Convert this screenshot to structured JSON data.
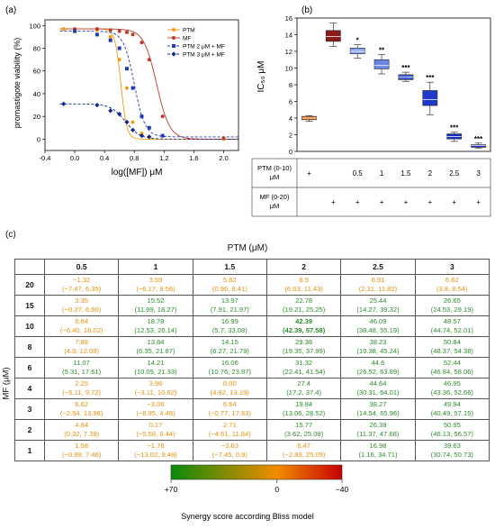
{
  "panel_a": {
    "label": "(a)",
    "chart_data": {
      "type": "scatter",
      "xlabel": "log([MF]) μM",
      "ylabel": "promastigote viability (%)",
      "xlim": [
        -0.4,
        2.2
      ],
      "ylim": [
        -10,
        105
      ],
      "xticks": [
        "-0.4",
        "0.0",
        "0.4",
        "0.8",
        "1.2",
        "1.6",
        "2.0"
      ],
      "yticks": [
        "0",
        "20",
        "40",
        "60",
        "80",
        "100"
      ],
      "legend_position": "top-right",
      "series": [
        {
          "name": "PTM",
          "color": "#f39c12",
          "marker": "circle",
          "line": "solid",
          "x": [
            -0.15,
            0.3,
            0.48,
            0.6,
            0.7,
            0.78,
            0.9,
            1.0,
            2.0
          ],
          "y": [
            97,
            96,
            90,
            70,
            45,
            15,
            5,
            2,
            0
          ],
          "curve": {
            "top": 97,
            "bottom": 0,
            "logec50": 0.62,
            "hill": 11
          }
        },
        {
          "name": "MF",
          "color": "#c0392b",
          "marker": "circle",
          "line": "solid",
          "x": [
            0.0,
            0.3,
            0.48,
            0.6,
            0.7,
            0.78,
            0.9,
            1.0,
            1.18,
            2.0
          ],
          "y": [
            97,
            97,
            96,
            95,
            94,
            92,
            85,
            70,
            20,
            1
          ],
          "curve": {
            "top": 97,
            "bottom": 0,
            "logec50": 1.1,
            "hill": 5
          }
        },
        {
          "name": "PTM 2 μM + MF",
          "color": "#1f3bb3",
          "marker": "square",
          "line": "dashed",
          "x": [
            0.0,
            0.3,
            0.48,
            0.6,
            0.7,
            0.78,
            0.9,
            1.0,
            1.18
          ],
          "y": [
            95,
            92,
            87,
            80,
            62,
            45,
            20,
            10,
            3
          ],
          "curve": {
            "top": 95,
            "bottom": 2,
            "logec50": 0.8,
            "hill": 6
          }
        },
        {
          "name": "PTM 3 μM + MF",
          "color": "#0b2a8f",
          "marker": "diamond",
          "line": "dashed",
          "x": [
            -0.15,
            0.3,
            0.48,
            0.6,
            0.7,
            0.78,
            0.9,
            1.0
          ],
          "y": [
            31,
            30,
            25,
            22,
            15,
            8,
            3,
            2
          ],
          "curve": {
            "top": 31,
            "bottom": 0,
            "logec50": 0.68,
            "hill": 4.5
          }
        }
      ]
    }
  },
  "panel_b": {
    "label": "(b)",
    "chart_data": {
      "type": "box",
      "ylabel": "IC₅₀ μM",
      "ylim": [
        0,
        16
      ],
      "yticks": [
        "0",
        "2",
        "4",
        "6",
        "8",
        "10",
        "12",
        "14",
        "16"
      ],
      "boxes": [
        {
          "min": 3.6,
          "q1": 3.8,
          "median": 4.0,
          "q3": 4.2,
          "max": 4.3,
          "color": "#e07b1a",
          "sig": ""
        },
        {
          "min": 12.6,
          "q1": 13.2,
          "median": 13.8,
          "q3": 14.5,
          "max": 15.4,
          "color": "#8b1a1a",
          "sig": ""
        },
        {
          "min": 11.2,
          "q1": 11.7,
          "median": 12.0,
          "q3": 12.4,
          "max": 12.8,
          "color": "#8da5e8",
          "sig": "*"
        },
        {
          "min": 9.3,
          "q1": 9.9,
          "median": 10.3,
          "q3": 11.0,
          "max": 11.6,
          "color": "#6b86e0",
          "sig": "**"
        },
        {
          "min": 8.4,
          "q1": 8.6,
          "median": 8.9,
          "q3": 9.2,
          "max": 9.5,
          "color": "#3e5ed9",
          "sig": "***"
        },
        {
          "min": 4.4,
          "q1": 5.5,
          "median": 6.2,
          "q3": 7.3,
          "max": 8.3,
          "color": "#2038cc",
          "sig": "***"
        },
        {
          "min": 1.2,
          "q1": 1.5,
          "median": 1.8,
          "q3": 2.1,
          "max": 2.3,
          "color": "#1a2fc2",
          "sig": "***"
        },
        {
          "min": 0.4,
          "q1": 0.5,
          "median": 0.7,
          "q3": 0.8,
          "max": 1.0,
          "color": "#1428b8",
          "sig": "***"
        }
      ],
      "design_table": {
        "rows": [
          {
            "label": "PTM (0-10) μM",
            "cells": [
              "+",
              "",
              "0.5",
              "1",
              "1.5",
              "2",
              "2.5",
              "3"
            ]
          },
          {
            "label": "MF (0-20) μM",
            "cells": [
              "",
              "+",
              "+",
              "+",
              "+",
              "+",
              "+",
              "+"
            ]
          }
        ]
      }
    }
  },
  "panel_c": {
    "label": "(c)",
    "chart_data": {
      "type": "table",
      "title": "PTM (μM)",
      "row_axis_label": "MF (μM)",
      "columns": [
        "0.5",
        "1",
        "1.5",
        "2",
        "2.5",
        "3"
      ],
      "rows": [
        {
          "mf": "20",
          "cells": [
            {
              "v": "−1.32",
              "ci": "(−7.47, 6.35)",
              "s": "neg"
            },
            {
              "v": "3.59",
              "ci": "(−6.17, 9.56)",
              "s": "neg"
            },
            {
              "v": "5.82",
              "ci": "(0.96, 8.41)",
              "s": "neg"
            },
            {
              "v": "8.9",
              "ci": "(6.63, 11.43)",
              "s": "neg"
            },
            {
              "v": "6.91",
              "ci": "(2.31, 11.82)",
              "s": "neg"
            },
            {
              "v": "6.62",
              "ci": "(3.8, 8.54)",
              "s": "neg"
            }
          ]
        },
        {
          "mf": "15",
          "cells": [
            {
              "v": "3.35",
              "ci": "(−0.37, 6.60)",
              "s": "neg"
            },
            {
              "v": "15.52",
              "ci": "(11.99, 18.27)",
              "s": "pos"
            },
            {
              "v": "13.97",
              "ci": "(7.91, 21.97)",
              "s": "pos"
            },
            {
              "v": "22.78",
              "ci": "(19.21, 25.25)",
              "s": "pos"
            },
            {
              "v": "25.44",
              "ci": "(14.27, 39.32)",
              "s": "pos"
            },
            {
              "v": "26.65",
              "ci": "(24.53, 29.19)",
              "s": "pos"
            }
          ]
        },
        {
          "mf": "10",
          "cells": [
            {
              "v": "6.64",
              "ci": "(−6.40, 16.02)",
              "s": "neg"
            },
            {
              "v": "18.78",
              "ci": "(12.53, 26.14)",
              "s": "pos"
            },
            {
              "v": "16.99",
              "ci": "(5.7, 33.08)",
              "s": "pos"
            },
            {
              "v": "42.39",
              "ci": "(42.39, 57.58)",
              "s": "pos bold"
            },
            {
              "v": "46.09",
              "ci": "(38.48, 55.19)",
              "s": "pos"
            },
            {
              "v": "48.57",
              "ci": "(44.74, 52.01)",
              "s": "pos"
            }
          ]
        },
        {
          "mf": "8",
          "cells": [
            {
              "v": "7.88",
              "ci": "(4.9, 12.09)",
              "s": "neg"
            },
            {
              "v": "13.84",
              "ci": "(6.35, 21.87)",
              "s": "pos"
            },
            {
              "v": "14.15",
              "ci": "(6.27, 21.79)",
              "s": "pos"
            },
            {
              "v": "29.38",
              "ci": "(19.35, 37.99)",
              "s": "pos"
            },
            {
              "v": "38.23",
              "ci": "(19.38, 45.24)",
              "s": "pos"
            },
            {
              "v": "50.84",
              "ci": "(48.37, 54.38)",
              "s": "pos"
            }
          ]
        },
        {
          "mf": "6",
          "cells": [
            {
              "v": "11.07",
              "ci": "(5.31, 17.61)",
              "s": "pos"
            },
            {
              "v": "14.21",
              "ci": "(10.09, 21.33)",
              "s": "pos"
            },
            {
              "v": "16.06",
              "ci": "(10.76, 23.87)",
              "s": "pos"
            },
            {
              "v": "31.32",
              "ci": "(22.41, 41.54)",
              "s": "pos"
            },
            {
              "v": "44.6",
              "ci": "(26.52, 63.89)",
              "s": "pos"
            },
            {
              "v": "52.44",
              "ci": "(46.84, 58.06)",
              "s": "pos"
            }
          ]
        },
        {
          "mf": "4",
          "cells": [
            {
              "v": "2.25",
              "ci": "(−5.11, 9.72)",
              "s": "neg"
            },
            {
              "v": "3.96",
              "ci": "(−3.11, 10.62)",
              "s": "neg"
            },
            {
              "v": "8.00",
              "ci": "(4.82, 13.19)",
              "s": "neg"
            },
            {
              "v": "27.4",
              "ci": "(17.2, 37.4)",
              "s": "pos"
            },
            {
              "v": "44.64",
              "ci": "(30.31, 64.01)",
              "s": "pos"
            },
            {
              "v": "46.95",
              "ci": "(43.36, 52.66)",
              "s": "pos"
            }
          ]
        },
        {
          "mf": "3",
          "cells": [
            {
              "v": "6.62",
              "ci": "(−2.54, 13.96)",
              "s": "neg"
            },
            {
              "v": "−3.06",
              "ci": "(−8.95, 4.48)",
              "s": "neg"
            },
            {
              "v": "6.64",
              "ci": "(−0.77, 17.63)",
              "s": "neg"
            },
            {
              "v": "19.84",
              "ci": "(13.06, 28.52)",
              "s": "pos"
            },
            {
              "v": "38.27",
              "ci": "(14.54, 65.96)",
              "s": "pos"
            },
            {
              "v": "49.94",
              "ci": "(40.49, 57.15)",
              "s": "pos"
            }
          ]
        },
        {
          "mf": "2",
          "cells": [
            {
              "v": "4.84",
              "ci": "(0.32, 7.39)",
              "s": "neg"
            },
            {
              "v": "0.17",
              "ci": "(−5.58, 6.44)",
              "s": "neg"
            },
            {
              "v": "2.71",
              "ci": "(−4.61, 11.84)",
              "s": "neg"
            },
            {
              "v": "15.77",
              "ci": "(3.62, 25.09)",
              "s": "pos"
            },
            {
              "v": "26.39",
              "ci": "(11.37, 47.68)",
              "s": "pos"
            },
            {
              "v": "50.95",
              "ci": "(46.13, 56.57)",
              "s": "pos"
            }
          ]
        },
        {
          "mf": "1",
          "cells": [
            {
              "v": "1.58",
              "ci": "(−0.99, 7.46)",
              "s": "neg"
            },
            {
              "v": "−1.78",
              "ci": "(−13.02, 9.48)",
              "s": "neg"
            },
            {
              "v": "−3.63",
              "ci": "(−7.45, 0.9)",
              "s": "neg"
            },
            {
              "v": "6.47",
              "ci": "(−2.83, 25.09)",
              "s": "neg"
            },
            {
              "v": "16.98",
              "ci": "(1.16, 34.71)",
              "s": "pos"
            },
            {
              "v": "39.63",
              "ci": "(30.74, 50.73)",
              "s": "pos"
            }
          ]
        }
      ],
      "colorbar": {
        "labels": [
          "+70",
          "0",
          "−40"
        ],
        "colors": [
          "#0a8a0a",
          "#f28c00",
          "#c80000"
        ],
        "caption": "Synergy score according Bliss model"
      }
    }
  }
}
